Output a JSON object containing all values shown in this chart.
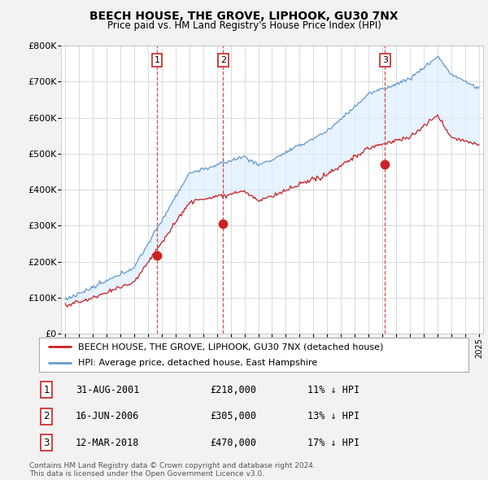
{
  "title": "BEECH HOUSE, THE GROVE, LIPHOOK, GU30 7NX",
  "subtitle": "Price paid vs. HM Land Registry's House Price Index (HPI)",
  "red_label": "BEECH HOUSE, THE GROVE, LIPHOOK, GU30 7NX (detached house)",
  "blue_label": "HPI: Average price, detached house, East Hampshire",
  "footer": "Contains HM Land Registry data © Crown copyright and database right 2024.\nThis data is licensed under the Open Government Licence v3.0.",
  "transactions": [
    {
      "num": 1,
      "date": "31-AUG-2001",
      "price": "£218,000",
      "hpi": "11% ↓ HPI",
      "year": 2001.67
    },
    {
      "num": 2,
      "date": "16-JUN-2006",
      "price": "£305,000",
      "hpi": "13% ↓ HPI",
      "year": 2006.46
    },
    {
      "num": 3,
      "date": "12-MAR-2018",
      "price": "£470,000",
      "hpi": "17% ↓ HPI",
      "year": 2018.19
    }
  ],
  "transaction_prices": [
    218000,
    305000,
    470000
  ],
  "ylim": [
    0,
    800000
  ],
  "yticks": [
    0,
    100000,
    200000,
    300000,
    400000,
    500000,
    600000,
    700000,
    800000
  ],
  "ytick_labels": [
    "£0",
    "£100K",
    "£200K",
    "£300K",
    "£400K",
    "£500K",
    "£600K",
    "£700K",
    "£800K"
  ],
  "bg_color": "#f2f2f2",
  "plot_bg": "#ffffff",
  "red_color": "#cc2222",
  "blue_color": "#6699cc",
  "fill_color": "#ddeeff",
  "vline_color": "#cc2222",
  "grid_color": "#cccccc",
  "xmin": 1995,
  "xmax": 2025
}
